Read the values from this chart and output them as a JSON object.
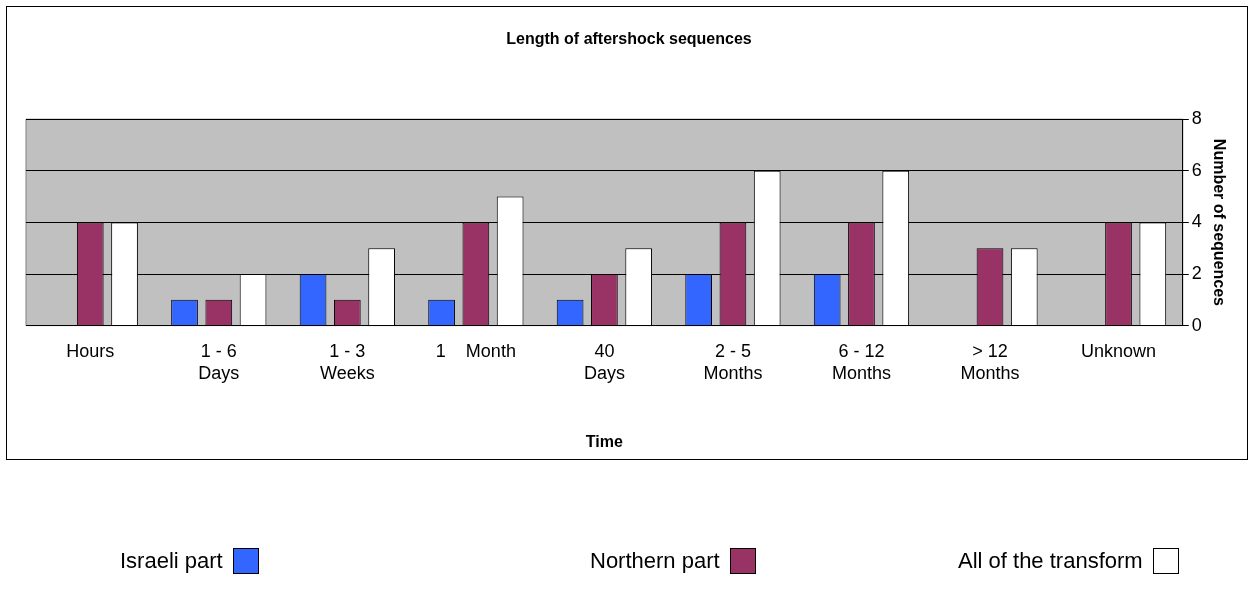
{
  "chart_data": {
    "type": "bar",
    "title": "Length of aftershock sequences",
    "xlabel": "Time",
    "ylabel": "Number of sequences",
    "categories": [
      "Hours",
      "1 - 6\nDays",
      "1 - 3\nWeeks",
      "1    Month",
      "40\nDays",
      "2 - 5\nMonths",
      "6 - 12\nMonths",
      "> 12\nMonths",
      "Unknown"
    ],
    "series": [
      {
        "name": "Israeli part",
        "color": "#3366ff",
        "values": [
          0,
          1,
          2,
          1,
          1,
          2,
          2,
          0,
          0
        ]
      },
      {
        "name": "Northern part",
        "color": "#993366",
        "values": [
          4,
          1,
          1,
          4,
          2,
          4,
          4,
          3,
          4
        ]
      },
      {
        "name": "All of the transform",
        "color": "#ffffff",
        "values": [
          4,
          2,
          3,
          5,
          3,
          6,
          6,
          3,
          4
        ]
      }
    ],
    "ylim": [
      0,
      8
    ],
    "yticks": [
      0,
      2,
      4,
      6,
      8
    ],
    "grid": "y",
    "legend": "bottom"
  }
}
